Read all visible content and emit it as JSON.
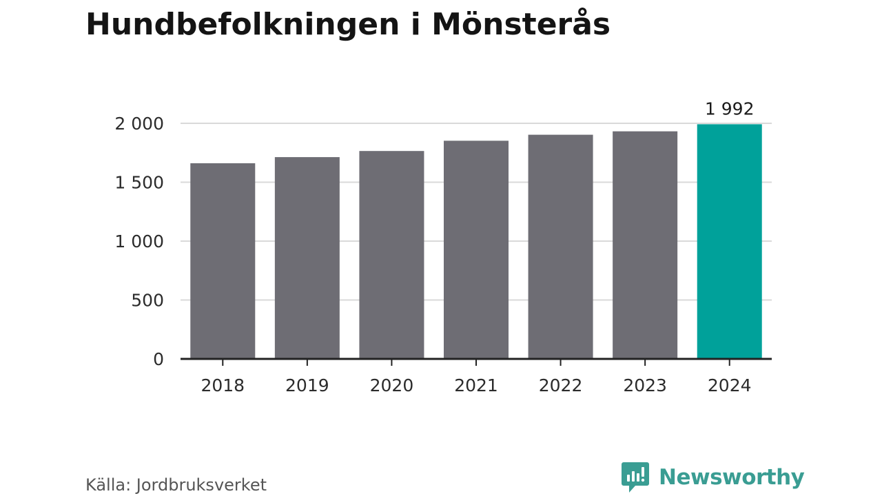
{
  "title": "Hundbefolkningen i Mönsterås",
  "source": "Källa: Jordbruksverket",
  "brand": {
    "name": "Newsworthy",
    "logo_icon": "newsworthy-logo-icon",
    "color": "#3a9d93"
  },
  "chart_data": {
    "type": "bar",
    "title": "Hundbefolkningen i Mönsterås",
    "categories": [
      "2018",
      "2019",
      "2020",
      "2021",
      "2022",
      "2023",
      "2024"
    ],
    "values": [
      1661,
      1713,
      1765,
      1852,
      1903,
      1932,
      1992
    ],
    "xlabel": "",
    "ylabel": "",
    "ylim": [
      0,
      2000
    ],
    "yticks": [
      0,
      500,
      1000,
      1500,
      2000
    ],
    "ytick_labels": [
      "0",
      "500",
      "1 000",
      "1 500",
      "2 000"
    ],
    "grid": true,
    "highlight": {
      "category": "2024",
      "label": "1 992"
    },
    "colors": {
      "bar": "#6e6d74",
      "highlight": "#00a19a",
      "grid": "#d9d9d9",
      "axis": "#222222"
    }
  }
}
